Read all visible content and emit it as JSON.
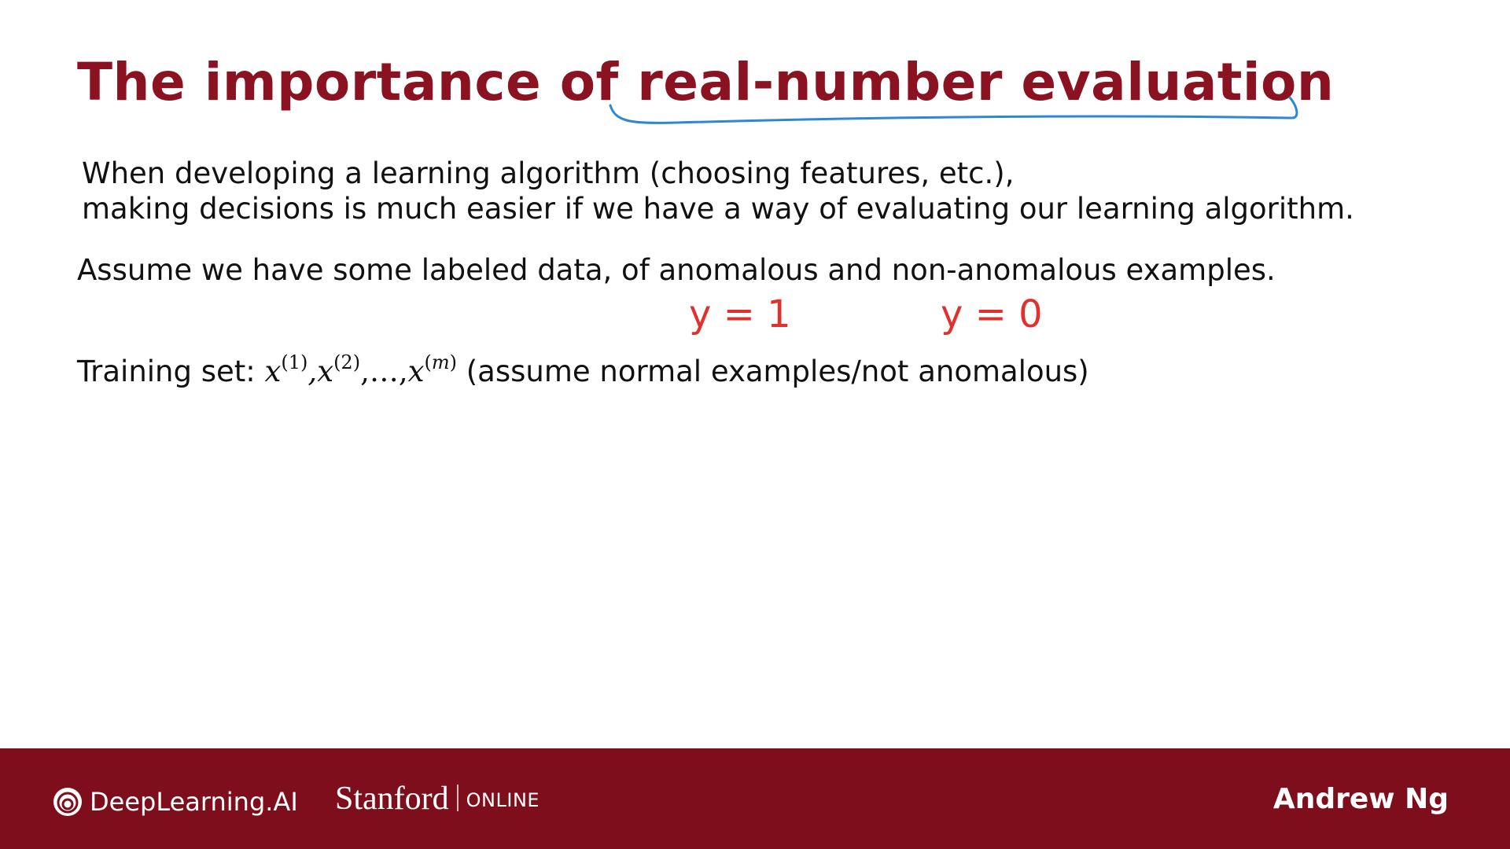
{
  "slide": {
    "title": "The importance of real-number evaluation",
    "paragraph1_line1": "When developing a learning algorithm (choosing features, etc.),",
    "paragraph1_line2": "making decisions is much easier if we have a way of evaluating our learning algorithm.",
    "paragraph2": "Assume we have some labeled data, of anomalous and non-anomalous examples.",
    "training_set": {
      "label": "Training set:",
      "x_symbol": "x",
      "sup1": "(1)",
      "sup2": "(2)",
      "ellipsis": ",…,",
      "supm_open": "(",
      "supm_var": "m",
      "supm_close": ")",
      "comment": "(assume normal examples/not anomalous)"
    },
    "annotations": {
      "anomalous_label": "y = 1",
      "normal_label": "y = 0",
      "ink_color": "#e2312d",
      "underline_color": "#2f86d8"
    }
  },
  "footer": {
    "deeplearning_logo": "DeepLearning.AI",
    "stanford_name": "Stanford",
    "stanford_online": "ONLINE",
    "author": "Andrew Ng",
    "background_color": "#7e0e1b"
  },
  "colors": {
    "title": "#8a1221",
    "text": "#111111"
  }
}
